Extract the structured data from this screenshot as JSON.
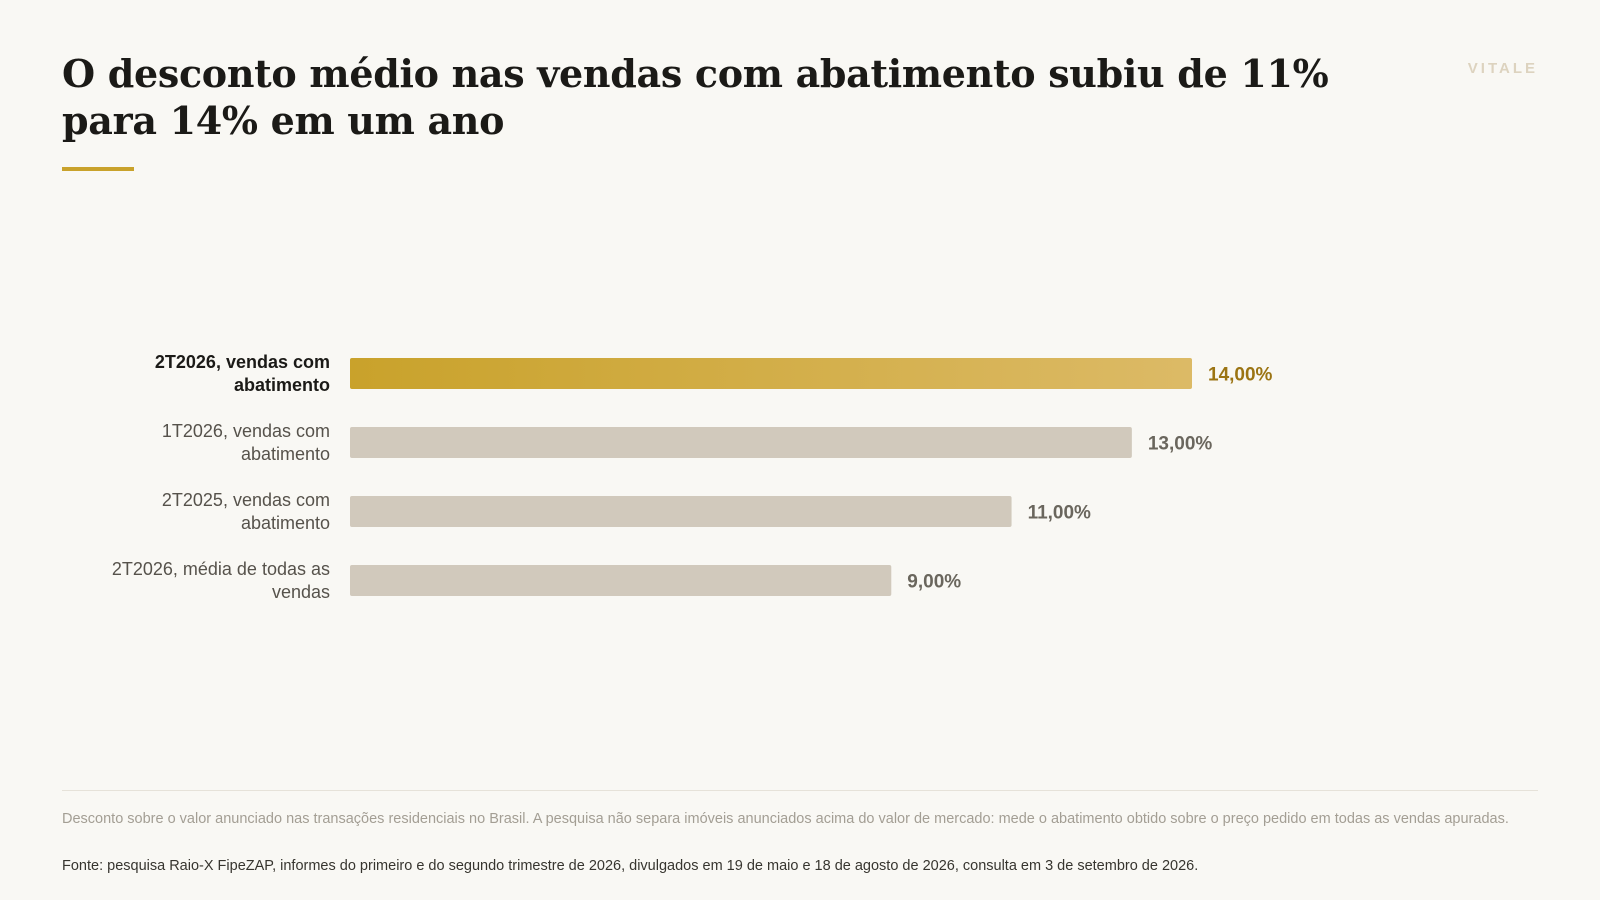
{
  "header": {
    "title": "O desconto médio nas vendas com abatimento subiu de 11% para 14% em um ano",
    "brand": "VITALE"
  },
  "colors": {
    "highlight_start": "#c9a22b",
    "highlight_end": "#dcba66",
    "bar_muted": "#d1c9bc",
    "highlight_text": "#9b7413",
    "accent_rule": "#c9a22b"
  },
  "chart_data": {
    "type": "bar",
    "orientation": "horizontal",
    "categories": [
      [
        "2T2026, vendas com",
        "abatimento"
      ],
      [
        "1T2026, vendas com",
        "abatimento"
      ],
      [
        "2T2025, vendas com",
        "abatimento"
      ],
      [
        "2T2026, média de todas as",
        "vendas"
      ]
    ],
    "values": [
      14,
      13,
      11,
      9
    ],
    "value_labels": [
      "14,00%",
      "13,00%",
      "11,00%",
      "9,00%"
    ],
    "highlight_index": 0,
    "xlim": [
      0,
      14
    ],
    "grid": false,
    "xlabel": "",
    "ylabel": ""
  },
  "footer": {
    "note": "Desconto sobre o valor anunciado nas transações residenciais no Brasil. A pesquisa não separa imóveis anunciados acima do valor de mercado: mede o abatimento obtido sobre o preço pedido em todas as vendas apuradas.",
    "source": "Fonte: pesquisa Raio-X FipeZAP, informes do primeiro e do segundo trimestre de 2026, divulgados em 19 de maio e 18 de agosto de 2026, consulta em 3 de setembro de 2026."
  }
}
